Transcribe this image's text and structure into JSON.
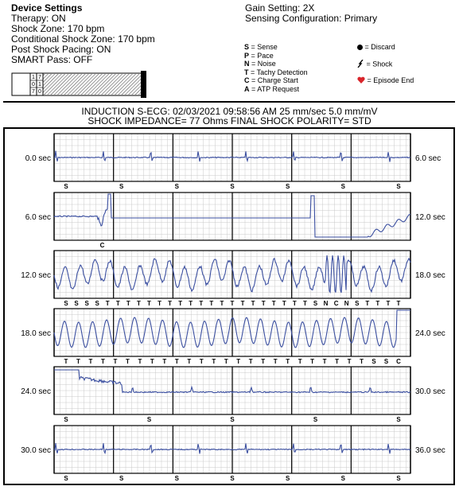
{
  "device_settings": {
    "title": "Device Settings",
    "lines": [
      "Therapy: ON",
      "Shock Zone: 170 bpm",
      "Conditional Shock Zone: 170 bpm",
      "Post Shock Pacing: ON",
      "SMART Pass: OFF"
    ]
  },
  "gain": {
    "gain_setting": "Gain Setting: 2X",
    "sensing_configuration": "Sensing Configuration: Primary"
  },
  "legend": {
    "left": [
      {
        "key": "S",
        "label": "= Sense"
      },
      {
        "key": "P",
        "label": "= Pace"
      },
      {
        "key": "N",
        "label": "= Noise"
      },
      {
        "key": "T",
        "label": "= Tachy Detection"
      },
      {
        "key": "C",
        "label": "= Charge Start"
      },
      {
        "key": "A",
        "label": "= ATP Request"
      }
    ],
    "right": [
      {
        "icon": "discard-dot-icon",
        "label": "= Discard"
      },
      {
        "icon": "shock-icon",
        "label": "= Shock"
      },
      {
        "icon": "episode-end-heart-icon",
        "label": "= Episode End"
      }
    ],
    "colors": {
      "heart": "#d9252b",
      "trace": "#3b4fa0"
    }
  },
  "battery_digits": [
    "1",
    "7",
    "0",
    "1",
    "7",
    "0"
  ],
  "induction": {
    "line1": "INDUCTION S-ECG: 02/03/2021 09:58:56 AM 25 mm/sec 5.0 mm/mV",
    "line2": "SHOCK IMPEDANCE= 77 Ohms FINAL SHOCK POLARITY= STD"
  },
  "strips": [
    {
      "start": "0.0 sec",
      "end": "6.0 sec",
      "markers": [
        "S",
        "S",
        "S",
        "S",
        "S",
        "S",
        "S"
      ]
    },
    {
      "start": "6.0 sec",
      "end": "12.0 sec",
      "markers": [
        "C"
      ]
    },
    {
      "start": "12.0 sec",
      "end": "18.0 sec",
      "markers": [
        "S",
        "S",
        "S",
        "S",
        "T",
        "T",
        "T",
        "T",
        "T",
        "T",
        "T",
        "T",
        "T",
        "T",
        "T",
        "T",
        "T",
        "T",
        "T",
        "T",
        "T",
        "T",
        "T",
        "T",
        "S",
        "N",
        "C",
        "N",
        "S",
        "T",
        "T",
        "T",
        "T"
      ]
    },
    {
      "start": "18.0 sec",
      "end": "24.0 sec",
      "markers": [
        "T",
        "T",
        "T",
        "T",
        "T",
        "T",
        "T",
        "T",
        "T",
        "T",
        "T",
        "T",
        "T",
        "T",
        "T",
        "T",
        "T",
        "T",
        "T",
        "T",
        "T",
        "T",
        "T",
        "T",
        "T",
        "S",
        "S",
        "C"
      ]
    },
    {
      "start": "24.0 sec",
      "end": "30.0 sec",
      "markers": [
        "S",
        "S",
        "S",
        "S",
        "S"
      ]
    },
    {
      "start": "30.0 sec",
      "end": "36.0 sec",
      "markers": [
        "S",
        "S",
        "S",
        "S",
        "S",
        "S",
        "S"
      ]
    }
  ]
}
